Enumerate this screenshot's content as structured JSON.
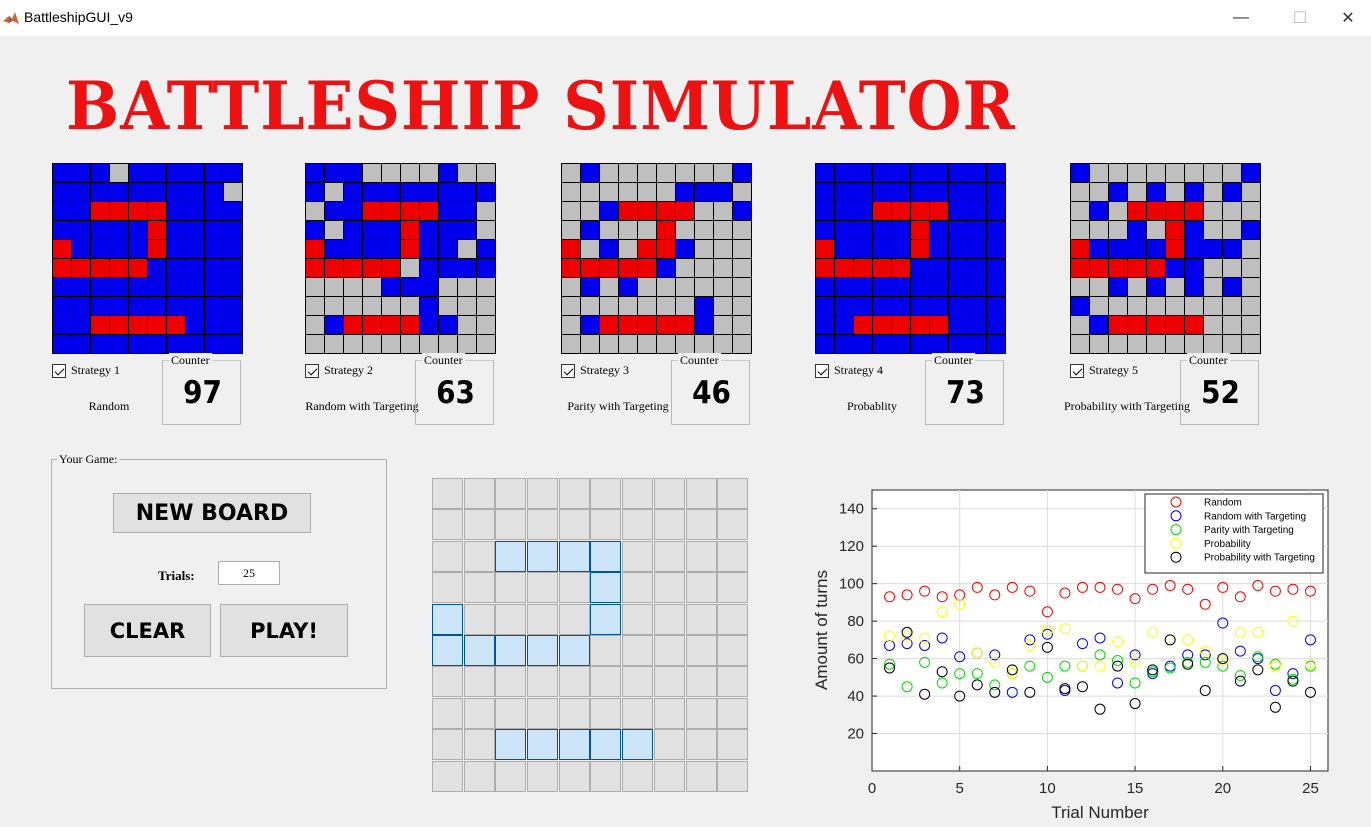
{
  "window": {
    "title": "BattleshipGUI_v9"
  },
  "banner": {
    "title": "BATTLESHIP SIMULATOR"
  },
  "legend_cell_key": {
    "u": "unexplored",
    "m": "miss",
    "h": "hit"
  },
  "colors": {
    "hit": "#ee0000",
    "miss": "#0000ee",
    "unexplored": "#bfbfbf",
    "ship": "#cce4f7",
    "title": "#ee1111"
  },
  "strategies": [
    {
      "checkbox_label": "Strategy 1",
      "name": "Random",
      "counter_label": "Counter",
      "counter_value": "97",
      "grid": [
        "mmmummmmmm",
        "mmmmmmmmmu",
        "mmhhhhmmmm",
        "mmmmmhmmmm",
        "hmmmmhmmmm",
        "hhhhhmmmmm",
        "mmmmmmmmmm",
        "mmmmmmmmmm",
        "mmhhhhhmmm",
        "mmmmmmmmmm"
      ]
    },
    {
      "checkbox_label": "Strategy 2",
      "name": "Random with Targeting",
      "counter_label": "Counter",
      "counter_value": "63",
      "grid": [
        "mmmuuuumuu",
        "mummmmmmmm",
        "ummhhhhmmu",
        "mummmhmmmu",
        "hmmmmhmmum",
        "hhhhhummmm",
        "uuuummmuuu",
        "uuuuuumuuu",
        "umhhhhmmuu",
        "uuuuuuuuuu"
      ]
    },
    {
      "checkbox_label": "Strategy 3",
      "name": "Parity with Targeting",
      "counter_label": "Counter",
      "counter_value": "46",
      "grid": [
        "umuuuuuuum",
        "uuuuuummmu",
        "uumhhhhuum",
        "umuuuhuuuu",
        "humuhhmuuu",
        "hhhhhmuuuu",
        "umumuuuuuu",
        "uuuuuuumuu",
        "umhhhhhmuu",
        "uuuuuuuuuu"
      ]
    },
    {
      "checkbox_label": "Strategy 4",
      "name": "Probablity",
      "counter_label": "Counter",
      "counter_value": "73",
      "grid": [
        "mmmmmmmmmm",
        "mmmmmmmmmm",
        "mmmhhhhmmm",
        "mmmmmhmmmm",
        "hmmmmhmmmm",
        "hhhhhmmmmm",
        "mmmmmmmmmm",
        "mmmmmmmmmm",
        "mmhhhhhmmm",
        "mmmmmmmmmm"
      ]
    },
    {
      "checkbox_label": "Strategy 5",
      "name": "Probability with Targeting",
      "counter_label": "Counter",
      "counter_value": "52",
      "grid": [
        "muuuuuuuum",
        "uumumumumu",
        "umuhhhhuuu",
        "uuumuhmuum",
        "hmmmmhmmmu",
        "hhhhhmmuuu",
        "uumumumumu",
        "muuuuuuuuu",
        "umhhhhhuuu",
        "uuuuuuuuuu"
      ]
    }
  ],
  "game": {
    "panel_label": "Your Game:",
    "new_board_label": "NEW BOARD",
    "trials_label": "Trials:",
    "trials_value": "25",
    "clear_label": "CLEAR",
    "play_label": "PLAY!"
  },
  "user_board": {
    "grid": [
      "..........",
      "..........",
      "..SSSS....",
      ".....S....",
      "S....S....",
      "SSSSS.....",
      "..........",
      "..........",
      "..SSSSS...",
      ".........."
    ]
  },
  "chart_data": {
    "type": "scatter",
    "title": "",
    "xlabel": "Trial Number",
    "ylabel": "Amount of turns",
    "xlim": [
      0,
      26
    ],
    "ylim": [
      0,
      150
    ],
    "xticks": [
      0,
      5,
      10,
      15,
      20,
      25
    ],
    "yticks": [
      20,
      40,
      60,
      80,
      100,
      120,
      140
    ],
    "grid": true,
    "legend_position": "top-right",
    "x": [
      1,
      2,
      3,
      4,
      5,
      6,
      7,
      8,
      9,
      10,
      11,
      12,
      13,
      14,
      15,
      16,
      17,
      18,
      19,
      20,
      21,
      22,
      23,
      24,
      25
    ],
    "series": [
      {
        "name": "Random",
        "color": "#ff0000",
        "values": [
          93,
          94,
          96,
          93,
          94,
          98,
          94,
          98,
          96,
          85,
          95,
          98,
          98,
          97,
          92,
          97,
          99,
          97,
          89,
          98,
          93,
          99,
          96,
          97,
          96
        ]
      },
      {
        "name": "Random with Targeting",
        "color": "#0000ff",
        "values": [
          67,
          68,
          67,
          71,
          61,
          63,
          62,
          42,
          70,
          73,
          43,
          68,
          71,
          47,
          62,
          52,
          56,
          62,
          62,
          79,
          64,
          60,
          43,
          52,
          70
        ]
      },
      {
        "name": "Parity with Targeting",
        "color": "#00dd00",
        "values": [
          57,
          45,
          58,
          47,
          52,
          52,
          46,
          52,
          56,
          50,
          56,
          56,
          62,
          59,
          47,
          53,
          55,
          58,
          58,
          56,
          51,
          61,
          57,
          49,
          56
        ]
      },
      {
        "name": "Probability",
        "color": "#ffff00",
        "values": [
          72,
          72,
          71,
          85,
          89,
          63,
          58,
          52,
          67,
          75,
          76,
          56,
          56,
          69,
          58,
          74,
          70,
          70,
          64,
          59,
          74,
          74,
          56,
          80,
          57
        ]
      },
      {
        "name": "Probability with Targeting",
        "color": "#000000",
        "values": [
          55,
          74,
          41,
          53,
          40,
          46,
          42,
          54,
          42,
          66,
          44,
          45,
          33,
          56,
          36,
          54,
          70,
          57,
          43,
          60,
          48,
          54,
          34,
          48,
          42
        ]
      }
    ]
  }
}
